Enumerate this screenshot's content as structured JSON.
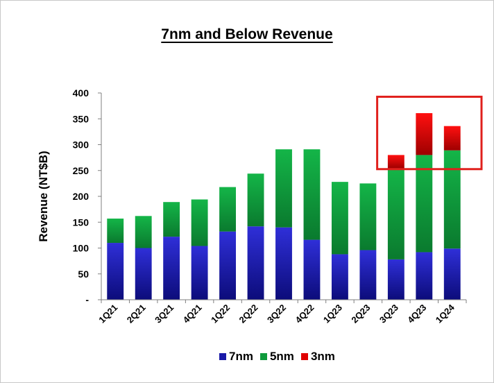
{
  "chart_data": {
    "type": "bar",
    "stacked": true,
    "title": "7nm and Below Revenue",
    "xlabel": "",
    "ylabel": "Revenue (NT$B)",
    "ylim": [
      0,
      400
    ],
    "yticks": [
      0,
      50,
      100,
      150,
      200,
      250,
      300,
      350,
      400
    ],
    "ytick_labels": [
      "-",
      "50",
      "100",
      "150",
      "200",
      "250",
      "300",
      "350",
      "400"
    ],
    "categories": [
      "1Q21",
      "2Q21",
      "3Q21",
      "4Q21",
      "1Q22",
      "2Q22",
      "3Q22",
      "4Q22",
      "1Q23",
      "2Q23",
      "3Q23",
      "4Q23",
      "1Q24"
    ],
    "series": [
      {
        "name": "7nm",
        "color": "#1a1aa8",
        "values": [
          110,
          100,
          122,
          104,
          132,
          142,
          140,
          116,
          88,
          96,
          78,
          92,
          99
        ]
      },
      {
        "name": "5nm",
        "color": "#0f9a3c",
        "values": [
          47,
          62,
          67,
          90,
          86,
          102,
          151,
          175,
          140,
          129,
          176,
          188,
          190
        ]
      },
      {
        "name": "3nm",
        "color": "#e00000",
        "values": [
          0,
          0,
          0,
          0,
          0,
          0,
          0,
          0,
          0,
          0,
          26,
          81,
          47
        ]
      }
    ],
    "legend_position": "bottom",
    "annotation": {
      "type": "highlight-box",
      "color": "#e0201c",
      "categories": [
        "3Q23",
        "4Q23",
        "1Q24"
      ],
      "y_range": [
        250,
        390
      ]
    }
  }
}
